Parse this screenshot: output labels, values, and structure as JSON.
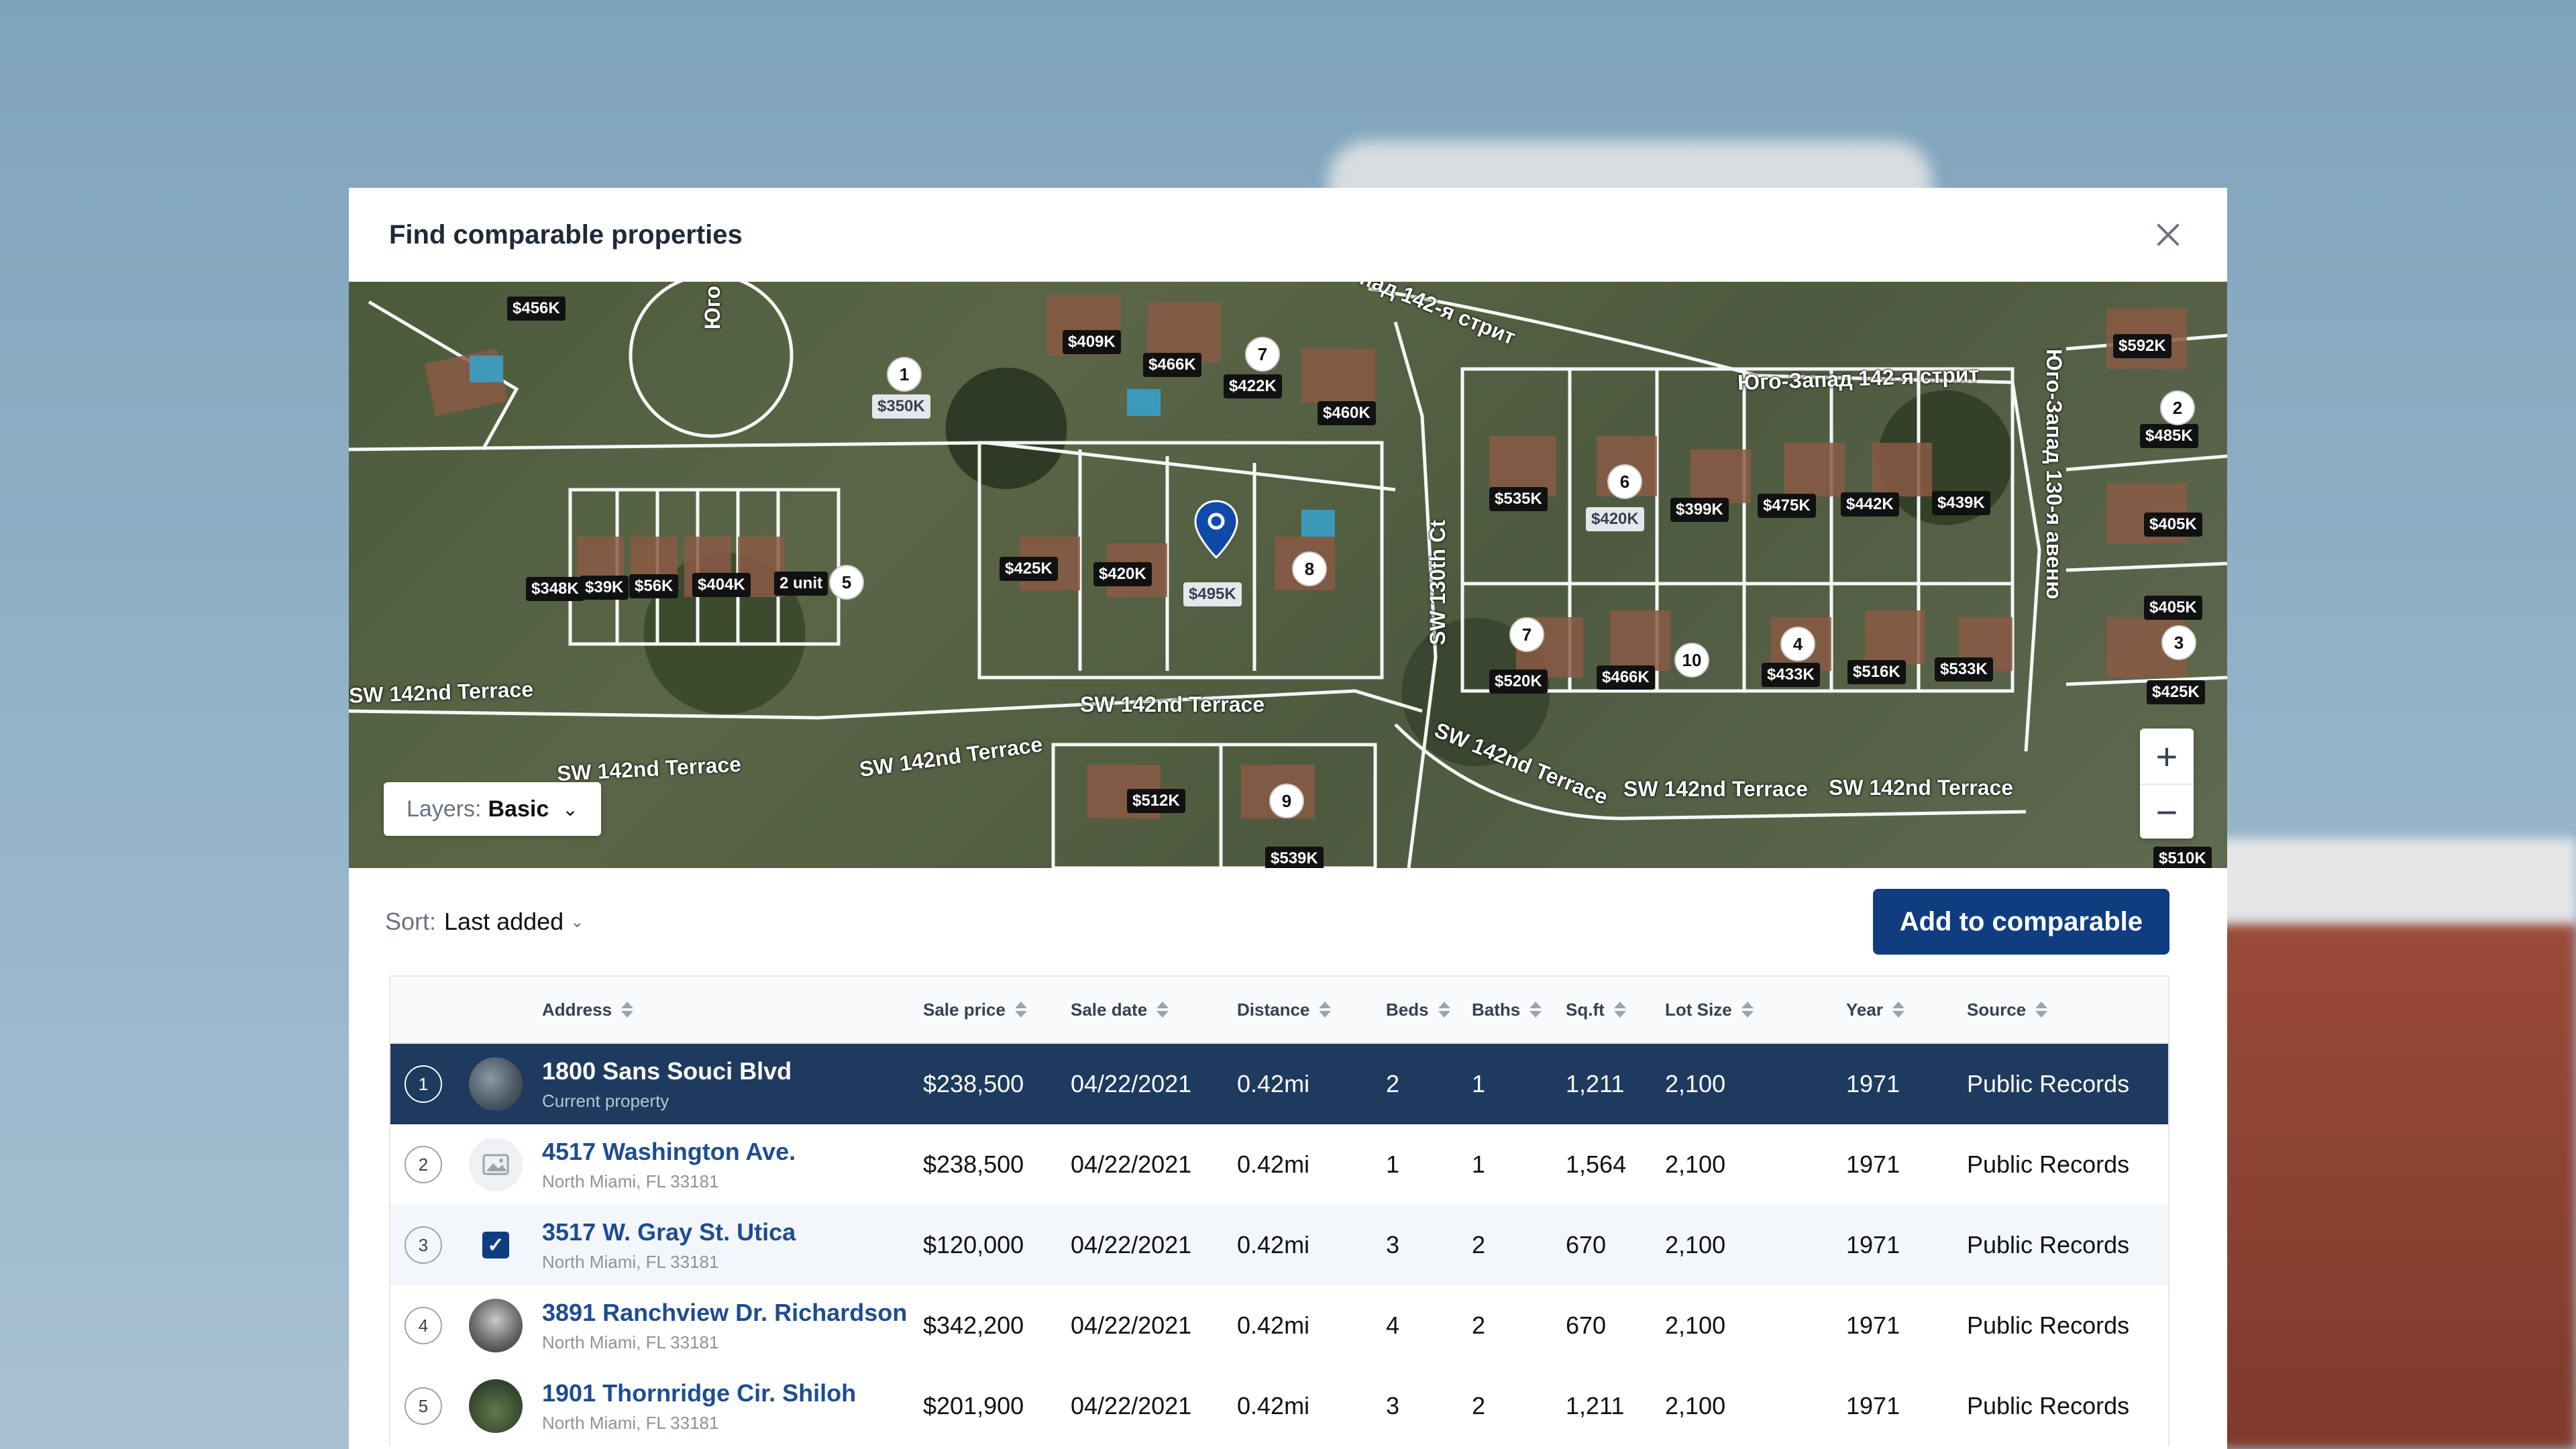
{
  "modal": {
    "title": "Find comparable properties"
  },
  "map": {
    "layers_label": "Layers:",
    "layers_value": "Basic",
    "zoom_in": "+",
    "zoom_out": "−",
    "streets": [
      "SW 142nd Terrace",
      "SW 142nd Terrace",
      "SW 142nd Terrace",
      "SW 142nd Terrace",
      "SW 142nd Terrace",
      "SW 142nd Terrace",
      "SW 142nd Terrace",
      "SW 130th Ct",
      "Юго-Запад 142-я стрит",
      "Юго-Запад 130-я авеню",
      "пад 142-я стрит",
      "Юго"
    ],
    "prices": [
      "$456K",
      "$350K",
      "$409K",
      "$466K",
      "$422K",
      "$460K",
      "$592K",
      "$485K",
      "$535K",
      "$420K",
      "$399K",
      "$475K",
      "$442K",
      "$439K",
      "$405K",
      "$425K",
      "$420K",
      "$495K",
      "$405K",
      "$348K",
      "$425K",
      "$520K",
      "$466K",
      "$433K",
      "$516K",
      "$533K",
      "$512K",
      "$539K",
      "$510K",
      "$404K",
      "$‍39K",
      "$‍56K",
      "2 unit"
    ],
    "numbers": [
      "1",
      "7",
      "2",
      "6",
      "8",
      "5",
      "3",
      "7",
      "10",
      "4",
      "9"
    ]
  },
  "sort": {
    "label": "Sort:",
    "value": "Last added"
  },
  "actions": {
    "add_label": "Add to comparable"
  },
  "table": {
    "headers": {
      "address": "Address",
      "price": "Sale price",
      "date": "Sale date",
      "distance": "Distance",
      "beds": "Beds",
      "baths": "Baths",
      "sqft": "Sq.ft",
      "lot": "Lot Size",
      "year": "Year",
      "source": "Source"
    },
    "rows": [
      {
        "idx": "1",
        "address": "1800 Sans Souci Blvd",
        "sub": "Current property",
        "price": "$238,500",
        "date": "04/22/2021",
        "distance": "0.42mi",
        "beds": "2",
        "baths": "1",
        "sqft": "1,211",
        "lot": "2,100",
        "year": "1971",
        "source": "Public Records"
      },
      {
        "idx": "2",
        "address": "4517 Washington Ave.",
        "sub": "North Miami, FL 33181",
        "price": "$238,500",
        "date": "04/22/2021",
        "distance": "0.42mi",
        "beds": "1",
        "baths": "1",
        "sqft": "1,564",
        "lot": "2,100",
        "year": "1971",
        "source": "Public Records"
      },
      {
        "idx": "3",
        "address": "3517 W. Gray St. Utica",
        "sub": "North Miami, FL 33181",
        "price": "$120,000",
        "date": "04/22/2021",
        "distance": "0.42mi",
        "beds": "3",
        "baths": "2",
        "sqft": "670",
        "lot": "2,100",
        "year": "1971",
        "source": "Public Records"
      },
      {
        "idx": "4",
        "address": "3891 Ranchview Dr. Richardson",
        "sub": "North Miami, FL 33181",
        "price": "$342,200",
        "date": "04/22/2021",
        "distance": "0.42mi",
        "beds": "4",
        "baths": "2",
        "sqft": "670",
        "lot": "2,100",
        "year": "1971",
        "source": "Public Records"
      },
      {
        "idx": "5",
        "address": "1901 Thornridge Cir. Shiloh",
        "sub": "North Miami, FL 33181",
        "price": "$201,900",
        "date": "04/22/2021",
        "distance": "0.42mi",
        "beds": "3",
        "baths": "2",
        "sqft": "1,211",
        "lot": "2,100",
        "year": "1971",
        "source": "Public Records"
      }
    ]
  },
  "colors": {
    "primary": "#0f3d80",
    "current_row": "#1e3a5f",
    "link": "#1e4d8f"
  }
}
